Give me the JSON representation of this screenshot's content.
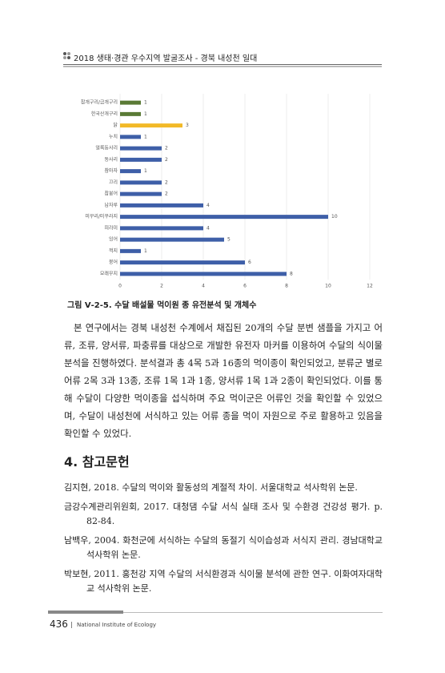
{
  "header": {
    "title": "2018 생태·경관 우수지역 발굴조사 - 경북 내성천 일대"
  },
  "chart_data": {
    "type": "bar",
    "orientation": "horizontal",
    "categories": [
      "참개구리/금개구리",
      "한국산개구리",
      "닭",
      "누치",
      "얼룩동사리",
      "동사리",
      "참마자",
      "끄리",
      "참붕어",
      "납자루",
      "미꾸리/미꾸라지",
      "피라미",
      "잉어",
      "꺽지",
      "붕어",
      "모래무지"
    ],
    "values": [
      1,
      1,
      3,
      1,
      2,
      2,
      1,
      2,
      2,
      4,
      10,
      4,
      5,
      1,
      6,
      8
    ],
    "colors": [
      "#5a7a35",
      "#5a7a35",
      "#f2b928",
      "#3e5fa8",
      "#3e5fa8",
      "#3e5fa8",
      "#3e5fa8",
      "#3e5fa8",
      "#3e5fa8",
      "#3e5fa8",
      "#3e5fa8",
      "#3e5fa8",
      "#3e5fa8",
      "#3e5fa8",
      "#3e5fa8",
      "#3e5fa8"
    ],
    "xlim": [
      0,
      12
    ],
    "xticks": [
      0,
      2,
      4,
      6,
      8,
      10,
      12
    ],
    "grid": true
  },
  "figure_caption": "그림 Ⅴ-2-5. 수달 배설물 먹이원 종 유전분석 및 개체수",
  "body": {
    "paragraph": "본 연구에서는 경북 내성천 수계에서 채집된 20개의 수달 분변 샘플을 가지고 어류, 조류, 양서류, 파충류를 대상으로 개발한 유전자 마커를 이용하여 수달의 식이물 분석을 진행하였다. 분석결과 총 4목 5과 16종의 먹이종이 확인되었고, 분류군 별로 어류 2목 3과 13종, 조류 1목 1과 1종, 양서류 1목 1과 2종이 확인되었다. 이를 통해 수달이 다양한 먹이종을 섭식하며 주요 먹이군은 어류인 것을 확인할 수 있었으며, 수달이 내성천에 서식하고 있는 어류 종을 먹이 자원으로 주로 활용하고 있음을 확인할 수 있었다."
  },
  "references": {
    "heading": "4. 참고문헌",
    "items": [
      "김지현, 2018. 수달의 먹이와 활동성의 계절적 차이. 서울대학교 석사학위 논문.",
      "금강수계관리위원회, 2017. 대청댐 수달 서식 실태 조사 및 수환경 건강성 평가. p. 82-84.",
      "남백우, 2004. 화천군에 서식하는 수달의 동절기 식이습성과 서식지 관리. 경남대학교 석사학위 논문.",
      "박보현, 2011. 홍천강 지역 수달의 서식환경과 식이물 분석에 관한 연구. 이화여자대학교 석사학위 논문."
    ]
  },
  "footer": {
    "page": "436",
    "org": "National Institute of Ecology"
  }
}
